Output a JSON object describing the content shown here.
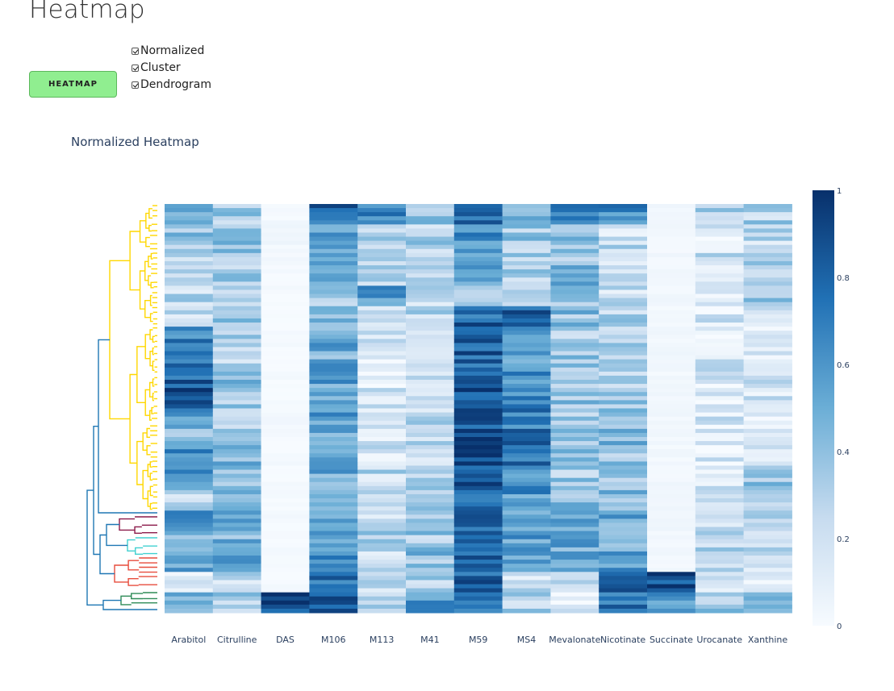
{
  "page": {
    "title": "Heatmap"
  },
  "controls": {
    "button_label": "HEATMAP",
    "options": [
      {
        "label": "Normalized",
        "checked": true
      },
      {
        "label": "Cluster",
        "checked": true
      },
      {
        "label": "Dendrogram",
        "checked": true
      }
    ]
  },
  "colors": {
    "button_bg": "#90ee90",
    "colorscale": [
      "#f7fbff",
      "#c6dbef",
      "#6baed6",
      "#2171b5",
      "#08306b"
    ],
    "dendrogram_main": "#ffd700",
    "dendrogram_root": "#1f77b4",
    "dendrogram_clusters": [
      "#8b1a4a",
      "#40d0d0",
      "#e74c3c",
      "#2e8b57"
    ]
  },
  "chart_data": {
    "type": "heatmap",
    "title": "Normalized Heatmap",
    "columns": [
      "Arabitol",
      "Citrulline",
      "DAS",
      "M106",
      "M113",
      "M41",
      "M59",
      "MS4",
      "Mevalonate",
      "Nicotinate",
      "Succinate",
      "Urocanate",
      "Xanthine"
    ],
    "colorbar": {
      "min": 0,
      "max": 1,
      "ticks": [
        0,
        0.2,
        0.4,
        0.6,
        0.8,
        1
      ]
    },
    "row_count": 100,
    "column_profiles": [
      [
        0.55,
        0.4,
        0.3,
        0.3,
        0.25,
        0.2,
        0.65,
        0.75,
        0.8,
        0.9,
        0.6,
        0.45,
        0.6,
        0.6,
        0.25,
        0.55,
        0.5,
        0.5,
        0.2,
        0.4
      ],
      [
        0.35,
        0.4,
        0.4,
        0.35,
        0.35,
        0.4,
        0.4,
        0.3,
        0.4,
        0.35,
        0.35,
        0.4,
        0.45,
        0.3,
        0.4,
        0.45,
        0.45,
        0.55,
        0.25,
        0.3
      ],
      [
        0.02,
        0.05,
        0.02,
        0.01,
        0.01,
        0.01,
        0.01,
        0.01,
        0.01,
        0.01,
        0.02,
        0.01,
        0.01,
        0.01,
        0.01,
        0.01,
        0.01,
        0.01,
        0.01,
        0.9
      ],
      [
        0.8,
        0.5,
        0.6,
        0.55,
        0.4,
        0.5,
        0.5,
        0.5,
        0.55,
        0.55,
        0.55,
        0.55,
        0.6,
        0.5,
        0.55,
        0.5,
        0.5,
        0.65,
        0.75,
        0.85
      ],
      [
        0.7,
        0.35,
        0.35,
        0.3,
        0.55,
        0.15,
        0.2,
        0.15,
        0.15,
        0.15,
        0.15,
        0.2,
        0.2,
        0.25,
        0.3,
        0.25,
        0.3,
        0.25,
        0.2,
        0.3
      ],
      [
        0.35,
        0.3,
        0.25,
        0.25,
        0.25,
        0.25,
        0.25,
        0.25,
        0.25,
        0.25,
        0.25,
        0.25,
        0.25,
        0.3,
        0.3,
        0.3,
        0.35,
        0.4,
        0.3,
        0.6
      ],
      [
        0.8,
        0.65,
        0.6,
        0.5,
        0.4,
        0.8,
        0.8,
        0.8,
        0.85,
        0.85,
        0.85,
        0.9,
        0.9,
        0.85,
        0.8,
        0.8,
        0.75,
        0.8,
        0.8,
        0.75
      ],
      [
        0.4,
        0.35,
        0.35,
        0.3,
        0.3,
        0.85,
        0.6,
        0.6,
        0.6,
        0.6,
        0.7,
        0.75,
        0.75,
        0.6,
        0.6,
        0.55,
        0.55,
        0.6,
        0.2,
        0.3
      ],
      [
        0.65,
        0.4,
        0.4,
        0.45,
        0.35,
        0.4,
        0.35,
        0.35,
        0.4,
        0.4,
        0.3,
        0.35,
        0.35,
        0.35,
        0.45,
        0.5,
        0.5,
        0.55,
        0.2,
        0.15
      ],
      [
        0.65,
        0.2,
        0.25,
        0.2,
        0.2,
        0.3,
        0.3,
        0.3,
        0.3,
        0.35,
        0.35,
        0.45,
        0.4,
        0.4,
        0.45,
        0.5,
        0.5,
        0.55,
        0.75,
        0.7
      ],
      [
        0.03,
        0.03,
        0.03,
        0.03,
        0.03,
        0.03,
        0.03,
        0.03,
        0.03,
        0.03,
        0.03,
        0.03,
        0.03,
        0.03,
        0.03,
        0.03,
        0.03,
        0.03,
        0.9,
        0.6
      ],
      [
        0.3,
        0.15,
        0.2,
        0.15,
        0.15,
        0.15,
        0.15,
        0.15,
        0.15,
        0.15,
        0.15,
        0.15,
        0.15,
        0.15,
        0.2,
        0.25,
        0.3,
        0.2,
        0.2,
        0.4
      ],
      [
        0.3,
        0.25,
        0.3,
        0.35,
        0.35,
        0.2,
        0.15,
        0.15,
        0.15,
        0.15,
        0.15,
        0.15,
        0.2,
        0.35,
        0.35,
        0.35,
        0.2,
        0.15,
        0.15,
        0.5
      ]
    ]
  }
}
